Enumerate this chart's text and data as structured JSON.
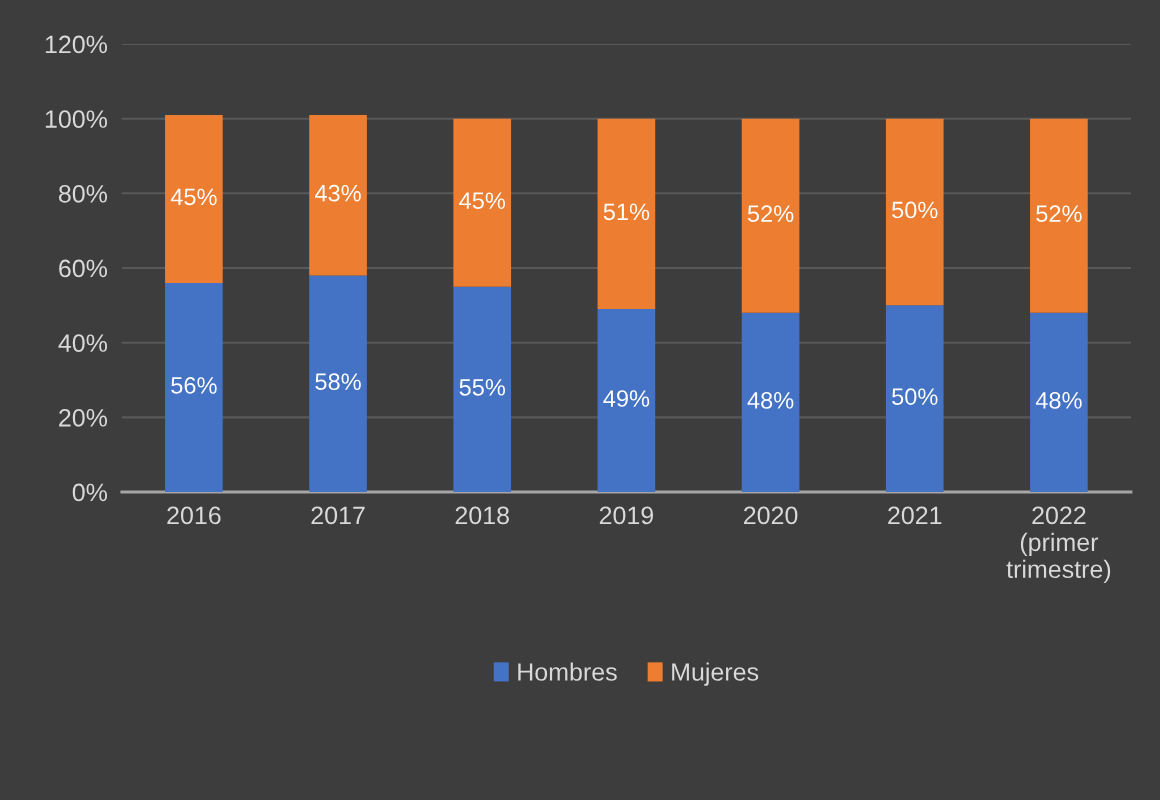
{
  "chart_data": {
    "type": "bar",
    "stacked": true,
    "categories": [
      "2016",
      "2017",
      "2018",
      "2019",
      "2020",
      "2021",
      "2022\n(primer\ntrimestre)"
    ],
    "series": [
      {
        "name": "Hombres",
        "color": "#4472c4",
        "values": [
          56,
          58,
          55,
          49,
          48,
          50,
          48
        ],
        "value_labels": [
          "56%",
          "58%",
          "55%",
          "49%",
          "48%",
          "50%",
          "48%"
        ]
      },
      {
        "name": "Mujeres",
        "color": "#ed7d31",
        "values": [
          45,
          43,
          45,
          51,
          52,
          50,
          52
        ],
        "value_labels": [
          "45%",
          "43%",
          "45%",
          "51%",
          "52%",
          "50%",
          "52%"
        ]
      }
    ],
    "ylim": [
      0,
      120
    ],
    "yticks": [
      {
        "value": 0,
        "label": "0%"
      },
      {
        "value": 20,
        "label": "20%"
      },
      {
        "value": 40,
        "label": "40%"
      },
      {
        "value": 60,
        "label": "60%"
      },
      {
        "value": 80,
        "label": "80%"
      },
      {
        "value": 100,
        "label": "100%"
      },
      {
        "value": 120,
        "label": "120%"
      }
    ],
    "grid": "y",
    "legend": "bottom"
  }
}
